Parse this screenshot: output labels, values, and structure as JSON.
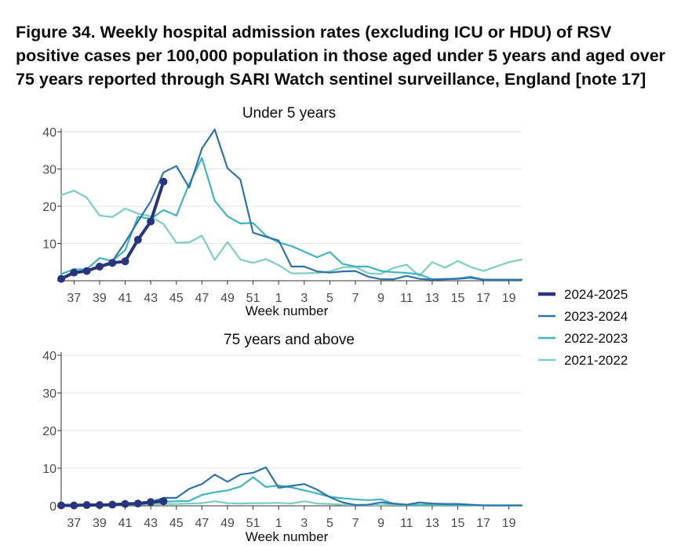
{
  "figure_title": "Figure 34. Weekly hospital admission rates (excluding ICU or HDU) of RSV positive cases per 100,000 population in those aged under 5 years and aged over 75 years reported through SARI Watch sentinel surveillance, England [note 17]",
  "colors": {
    "2024-2025": "#28347c",
    "2023-2024": "#2f73a8",
    "2022-2023": "#3fb4bd",
    "2021-2022": "#7dcdc3",
    "grid": "#e3e3e3",
    "axis": "#333333"
  },
  "chart_data": [
    {
      "type": "line",
      "title": "Under 5 years",
      "xlabel": "Week number",
      "ylabel": "",
      "ylim": [
        0,
        40
      ],
      "yticks": [
        0,
        10,
        20,
        30,
        40
      ],
      "ytick_labels": [
        "",
        "10",
        "20",
        "30",
        "40"
      ],
      "x_index_range": [
        0,
        36
      ],
      "week_sequence": [
        36,
        37,
        38,
        39,
        40,
        41,
        42,
        43,
        44,
        45,
        46,
        47,
        48,
        49,
        50,
        51,
        52,
        1,
        2,
        3,
        4,
        5,
        6,
        7,
        8,
        9,
        10,
        11,
        12,
        13,
        14,
        15,
        16,
        17,
        18,
        19,
        20
      ],
      "xtick_labels": [
        "37",
        "39",
        "41",
        "43",
        "45",
        "47",
        "49",
        "51",
        "1",
        "3",
        "5",
        "7",
        "9",
        "11",
        "13",
        "15",
        "17",
        "19"
      ],
      "xtick_index": [
        1,
        3,
        5,
        7,
        9,
        11,
        13,
        15,
        17,
        19,
        21,
        23,
        25,
        27,
        29,
        31,
        33,
        35
      ],
      "series": [
        {
          "name": "2021-2022",
          "markers": false,
          "values": [
            23,
            24.2,
            22.3,
            17.5,
            17.1,
            19.4,
            18,
            17.3,
            15.2,
            10.2,
            10.3,
            12.1,
            5.6,
            10.4,
            5.7,
            4.8,
            5.8,
            4.2,
            2,
            2,
            2.1,
            2.5,
            3.6,
            3.7,
            2,
            1.8,
            3.5,
            4.3,
            1.3,
            5,
            3.5,
            5.3,
            3.7,
            2.6,
            3.8,
            5,
            5.7
          ]
        },
        {
          "name": "2022-2023",
          "markers": false,
          "values": [
            1.8,
            3.1,
            3.1,
            6.1,
            5.3,
            8.2,
            17.2,
            16.6,
            19,
            17.5,
            26,
            33,
            21.5,
            17.3,
            15.4,
            15.5,
            12.1,
            10.3,
            9.3,
            7.8,
            6.3,
            7.7,
            4.5,
            3.8,
            3.8,
            2.6,
            2.3,
            2.1,
            1.7,
            0.4,
            0.5,
            0.6,
            1.1,
            0.3,
            0.3,
            0.3,
            0.3
          ]
        },
        {
          "name": "2023-2024",
          "markers": false,
          "values": [
            0.5,
            2.2,
            2.6,
            3.8,
            5.2,
            10.3,
            15.9,
            21.3,
            29.1,
            30.8,
            25,
            35.5,
            40.6,
            30.2,
            27.2,
            12.9,
            11.8,
            10.8,
            3.8,
            3.8,
            2.5,
            2.2,
            2.5,
            2.6,
            1.1,
            0.4,
            0.4,
            1.3,
            0.5,
            0.3,
            0.4,
            0.5,
            0.8,
            0.3,
            0.3,
            0.3,
            0.3
          ]
        },
        {
          "name": "2024-2025",
          "markers": true,
          "values": [
            0.5,
            2.2,
            2.6,
            3.8,
            4.8,
            5.2,
            11,
            15.9,
            26.6
          ]
        }
      ]
    },
    {
      "type": "line",
      "title": "75 years and above",
      "xlabel": "Week number",
      "ylabel": "",
      "ylim": [
        0,
        40
      ],
      "yticks": [
        0,
        10,
        20,
        30,
        40
      ],
      "ytick_labels": [
        "0",
        "10",
        "20",
        "30",
        "40"
      ],
      "x_index_range": [
        0,
        36
      ],
      "week_sequence": [
        36,
        37,
        38,
        39,
        40,
        41,
        42,
        43,
        44,
        45,
        46,
        47,
        48,
        49,
        50,
        51,
        52,
        1,
        2,
        3,
        4,
        5,
        6,
        7,
        8,
        9,
        10,
        11,
        12,
        13,
        14,
        15,
        16,
        17,
        18,
        19,
        20
      ],
      "xtick_labels": [
        "37",
        "39",
        "41",
        "43",
        "45",
        "47",
        "49",
        "51",
        "1",
        "3",
        "5",
        "7",
        "9",
        "11",
        "13",
        "15",
        "17",
        "19"
      ],
      "xtick_index": [
        1,
        3,
        5,
        7,
        9,
        11,
        13,
        15,
        17,
        19,
        21,
        23,
        25,
        27,
        29,
        31,
        33,
        35
      ],
      "series": [
        {
          "name": "2021-2022",
          "markers": false,
          "values": [
            0.1,
            0.1,
            0.1,
            0.1,
            0.1,
            0.2,
            0.3,
            0.4,
            0.5,
            0.5,
            0.6,
            0.7,
            1.2,
            0.7,
            0.6,
            0.7,
            0.7,
            0.8,
            0.6,
            1.2,
            0.6,
            0.5,
            0.3,
            0.2,
            0.2,
            0.2,
            0.3,
            0.2,
            0.2,
            0.2,
            0.2,
            0.2,
            0.2,
            0.1,
            0.1,
            0.1,
            0.1
          ]
        },
        {
          "name": "2022-2023",
          "markers": false,
          "values": [
            0.1,
            0.1,
            0.1,
            0.1,
            0.2,
            0.3,
            0.5,
            0.7,
            1.1,
            1.2,
            1.3,
            2.9,
            3.6,
            4.1,
            5.1,
            7.6,
            5,
            5.4,
            4.9,
            4.1,
            3.3,
            2.4,
            2,
            1.7,
            1.5,
            1.7,
            0.5,
            0.3,
            0.3,
            0.3,
            0.3,
            0.2,
            0.2,
            0.1,
            0.1,
            0.1,
            0.1
          ]
        },
        {
          "name": "2023-2024",
          "markers": false,
          "values": [
            0.1,
            0.1,
            0.2,
            0.2,
            0.3,
            0.5,
            0.6,
            1,
            2.1,
            2.1,
            4.5,
            5.8,
            8.3,
            6.4,
            8.3,
            8.8,
            10.2,
            4.8,
            5.3,
            5.8,
            4.3,
            2.3,
            0.9,
            0.2,
            0.3,
            0.9,
            0.6,
            0.3,
            0.9,
            0.6,
            0.5,
            0.5,
            0.3,
            0.1,
            0.1,
            0.1,
            0.1
          ]
        },
        {
          "name": "2024-2025",
          "markers": true,
          "values": [
            0.1,
            0.1,
            0.2,
            0.2,
            0.3,
            0.5,
            0.6,
            1,
            1.2
          ]
        }
      ]
    }
  ],
  "legend": [
    {
      "label": "2024-2025",
      "color": "#28347c",
      "bold": true
    },
    {
      "label": "2023-2024",
      "color": "#2f73a8",
      "bold": false
    },
    {
      "label": "2022-2023",
      "color": "#3fb4bd",
      "bold": false
    },
    {
      "label": "2021-2022",
      "color": "#7dcdc3",
      "bold": false
    }
  ]
}
